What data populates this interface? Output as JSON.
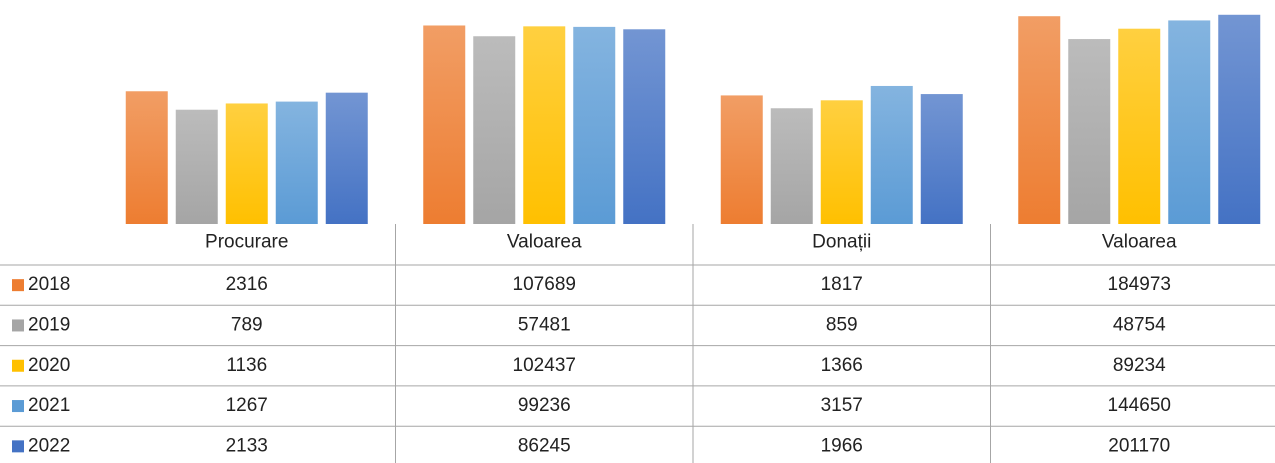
{
  "chart_data": {
    "type": "bar",
    "log_scale": true,
    "categories": [
      "Procurare",
      "Valoarea",
      "Donații",
      "Valoarea"
    ],
    "series": [
      {
        "name": "2018",
        "color": "#ed7d31",
        "values": [
          2316,
          107689,
          1817,
          184973
        ]
      },
      {
        "name": "2019",
        "color": "#a5a5a5",
        "values": [
          789,
          57481,
          859,
          48754
        ]
      },
      {
        "name": "2020",
        "color": "#ffc000",
        "values": [
          1136,
          102437,
          1366,
          89234
        ]
      },
      {
        "name": "2021",
        "color": "#5b9bd5",
        "values": [
          1267,
          99236,
          3157,
          144650
        ]
      },
      {
        "name": "2022",
        "color": "#4472c4",
        "values": [
          2133,
          86245,
          1966,
          201170
        ]
      }
    ],
    "ylim": [
      1,
      400000
    ]
  }
}
